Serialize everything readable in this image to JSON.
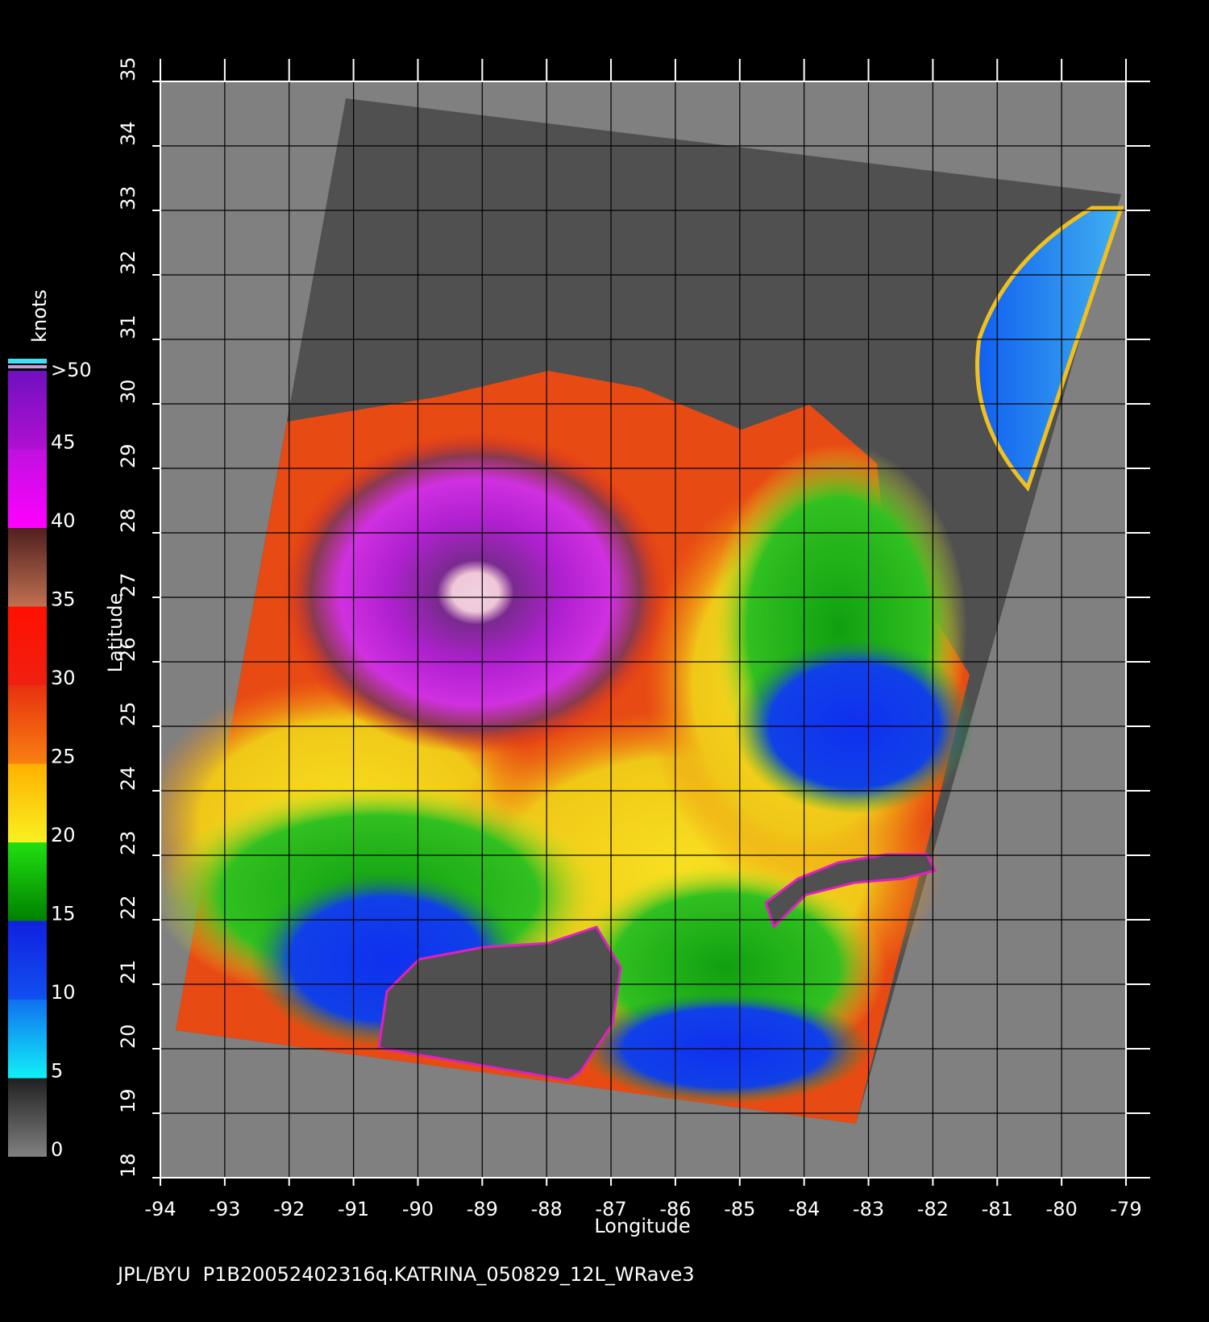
{
  "map": {
    "footer": "JPL/BYU  P1B20052402316q.KATRINA_050829_12L_WRave3",
    "x_label": "Longitude",
    "y_label": "Latitude",
    "xlim": [
      -94,
      -79
    ],
    "ylim": [
      18,
      35
    ],
    "xticks": [
      -94,
      -93,
      -92,
      -91,
      -90,
      -89,
      -88,
      -87,
      -86,
      -85,
      -84,
      -83,
      -82,
      -81,
      -80,
      -79
    ],
    "yticks": [
      18,
      19,
      20,
      21,
      22,
      23,
      24,
      25,
      26,
      27,
      28,
      29,
      30,
      31,
      32,
      33,
      34,
      35
    ],
    "colorbar": {
      "title": "knots",
      "lim": [
        0,
        50
      ],
      "ticks": [
        0,
        5,
        10,
        15,
        20,
        25,
        30,
        35,
        40,
        45,
        {
          "value": 50,
          "label": ">50"
        }
      ]
    }
  }
}
